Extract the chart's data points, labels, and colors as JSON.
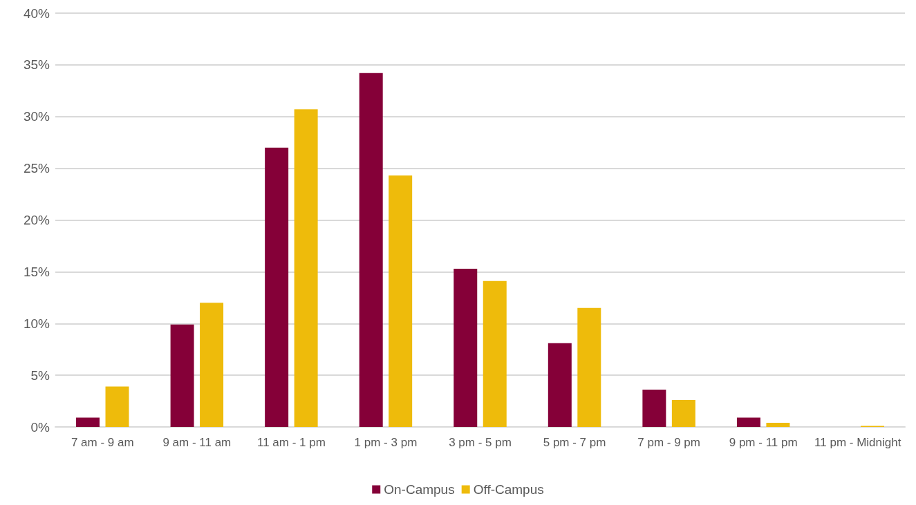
{
  "chart_data": {
    "type": "bar",
    "categories": [
      "7 am - 9 am",
      "9 am - 11 am",
      "11 am - 1 pm",
      "1 pm - 3 pm",
      "3 pm - 5 pm",
      "5 pm - 7 pm",
      "7 pm - 9 pm",
      "9 pm - 11 pm",
      "11 pm - Midnight"
    ],
    "series": [
      {
        "name": "On-Campus",
        "color": "#850038",
        "values": [
          0.9,
          9.9,
          27.0,
          34.2,
          15.3,
          8.1,
          3.6,
          0.9,
          0
        ]
      },
      {
        "name": "Off-Campus",
        "color": "#eebb0b",
        "values": [
          3.9,
          12.0,
          30.7,
          24.3,
          14.1,
          11.5,
          2.6,
          0.4,
          0.1
        ]
      }
    ],
    "ylim": [
      0,
      40
    ],
    "yticks": [
      {
        "value": 0,
        "label": "0%"
      },
      {
        "value": 5,
        "label": "5%"
      },
      {
        "value": 10,
        "label": "10%"
      },
      {
        "value": 15,
        "label": "15%"
      },
      {
        "value": 20,
        "label": "20%"
      },
      {
        "value": 25,
        "label": "25%"
      },
      {
        "value": 30,
        "label": "30%"
      },
      {
        "value": 35,
        "label": "35%"
      },
      {
        "value": 40,
        "label": "40%"
      }
    ],
    "grid": "y",
    "legend": "bottom"
  }
}
